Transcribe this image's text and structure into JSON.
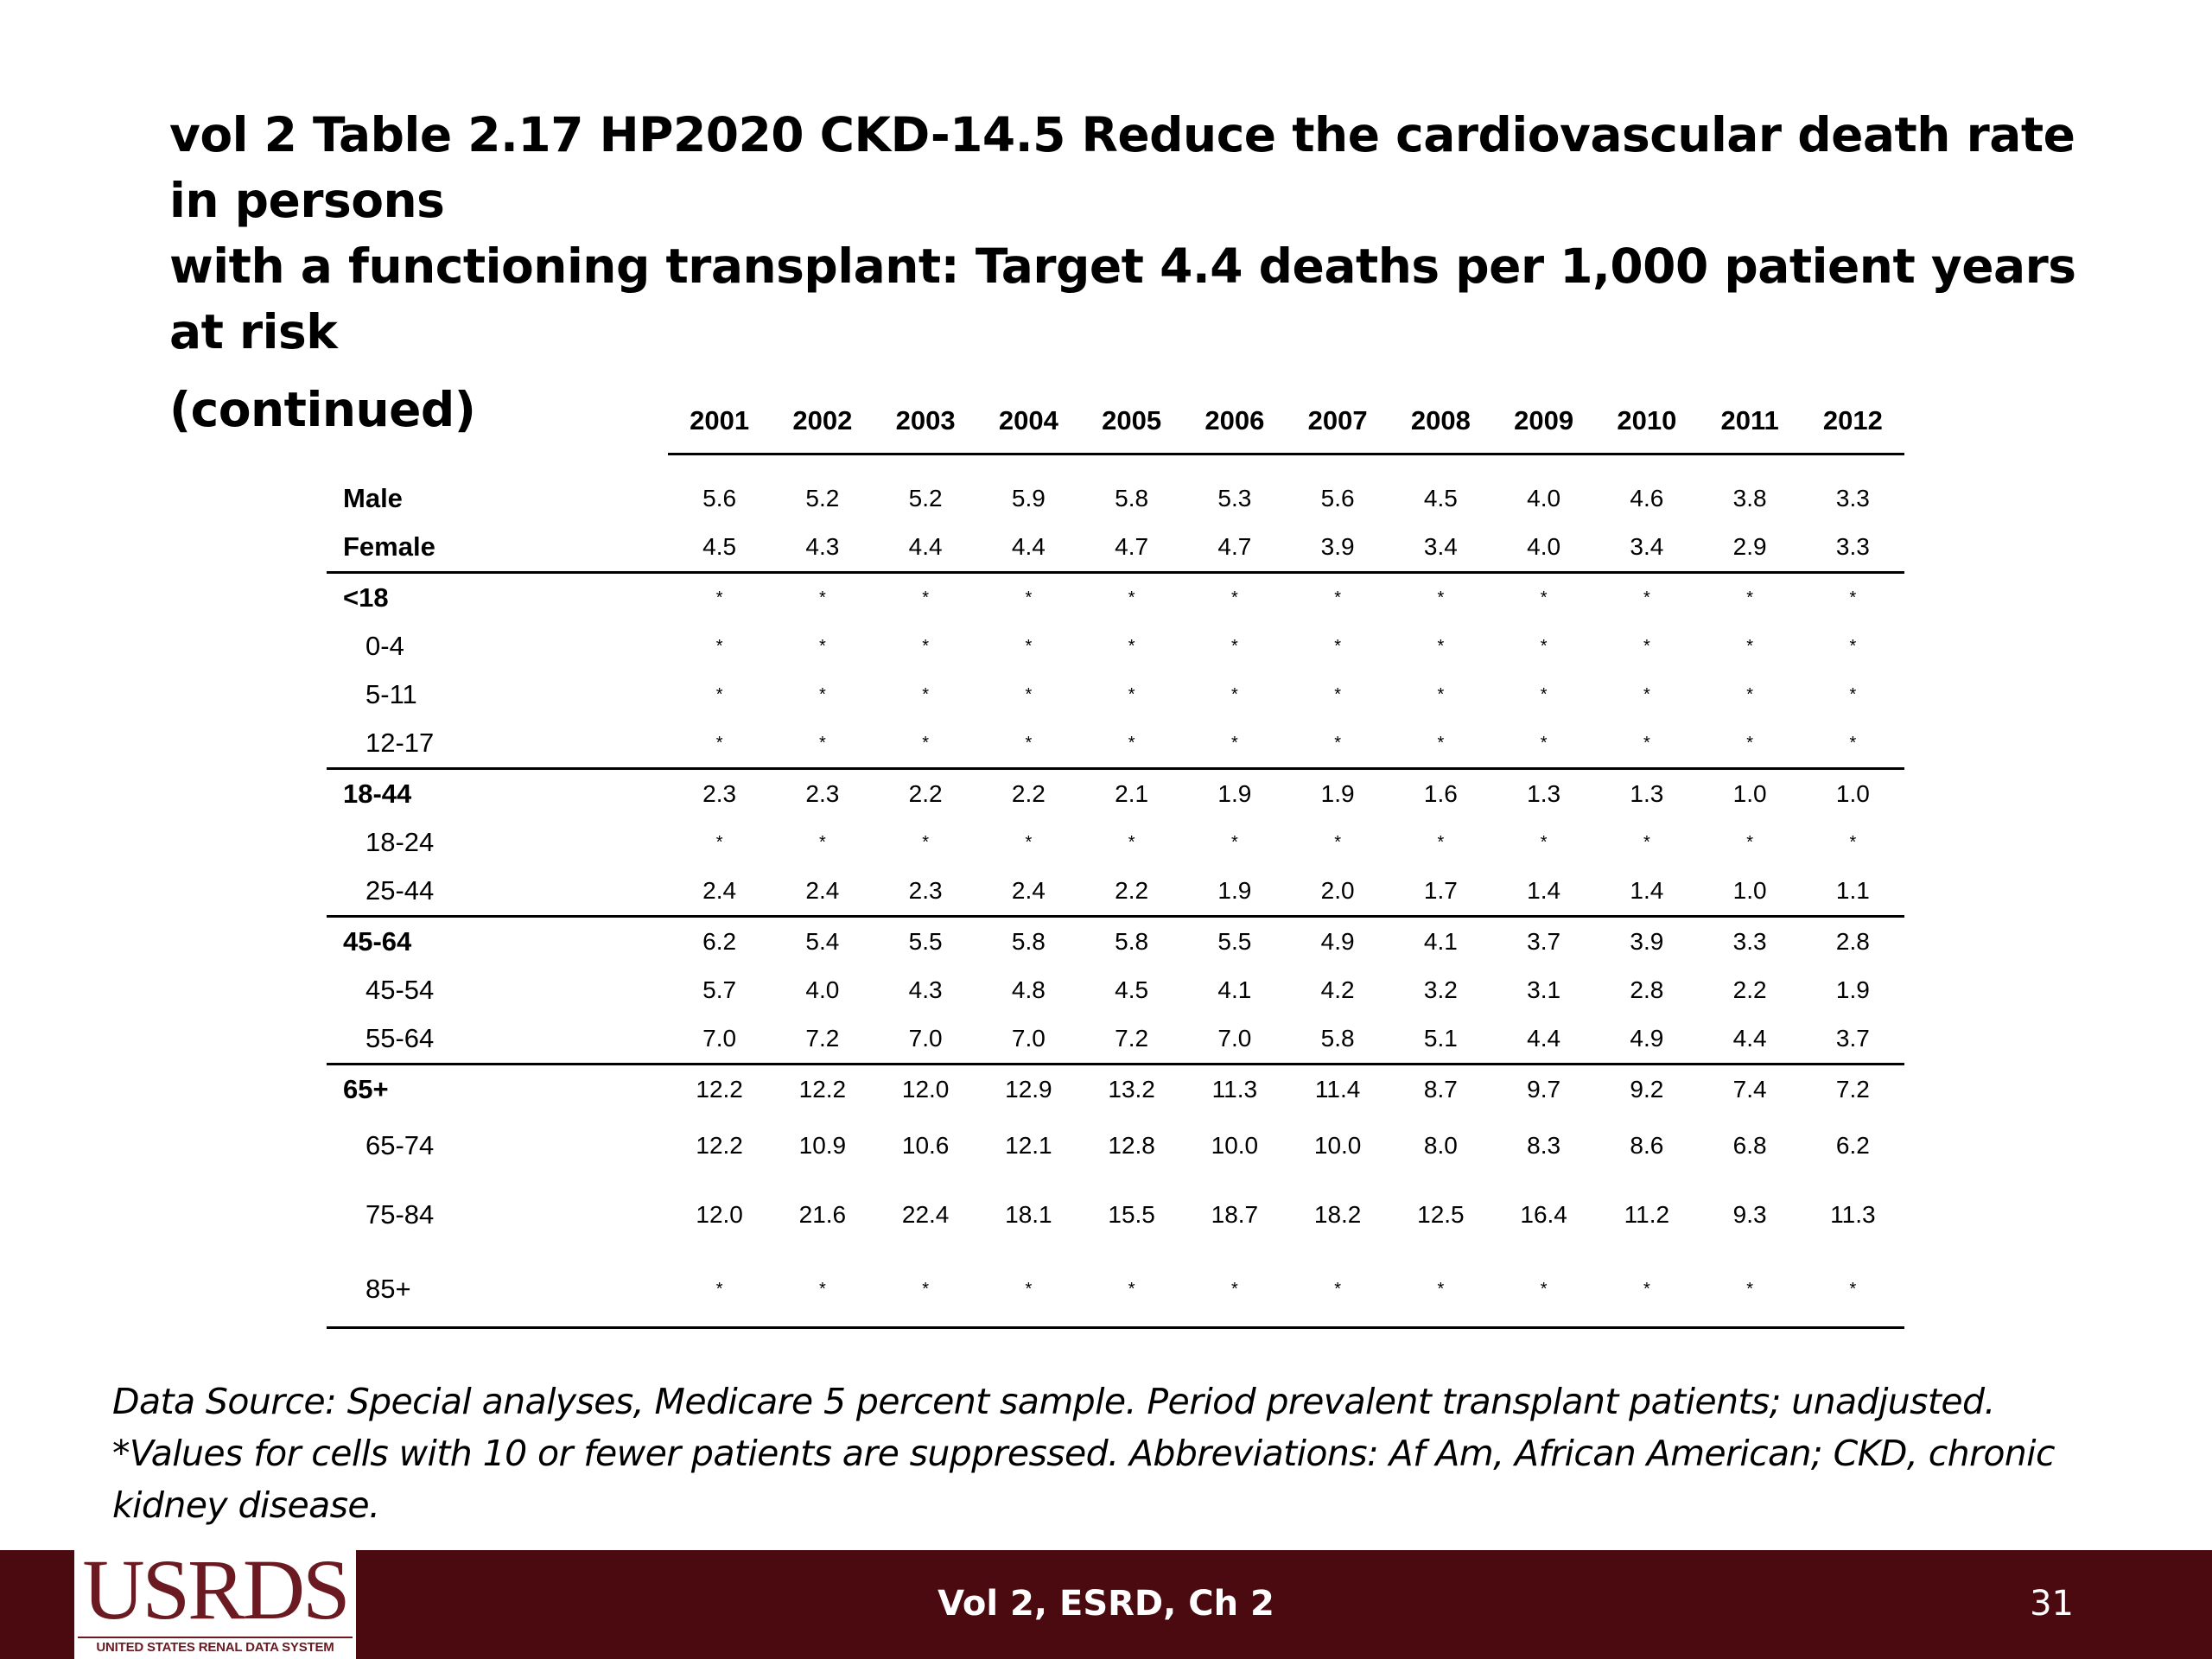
{
  "title": {
    "line1": "vol 2 Table 2.17  HP2020 CKD-14.5 Reduce the cardiovascular death rate in persons",
    "line2": "with a functioning transplant: Target 4.4 deaths per 1,000 patient years at risk",
    "line3": "(continued)"
  },
  "table": {
    "years": [
      "2001",
      "2002",
      "2003",
      "2004",
      "2005",
      "2006",
      "2007",
      "2008",
      "2009",
      "2010",
      "2011",
      "2012"
    ],
    "rows": [
      {
        "label": "Male",
        "bold": true,
        "indent": false,
        "values": [
          "5.6",
          "5.2",
          "5.2",
          "5.9",
          "5.8",
          "5.3",
          "5.6",
          "4.5",
          "4.0",
          "4.6",
          "3.8",
          "3.3"
        ]
      },
      {
        "label": "Female",
        "bold": true,
        "indent": false,
        "values": [
          "4.5",
          "4.3",
          "4.4",
          "4.4",
          "4.7",
          "4.7",
          "3.9",
          "3.4",
          "4.0",
          "3.4",
          "2.9",
          "3.3"
        ]
      },
      {
        "label": "<18",
        "bold": true,
        "indent": false,
        "values": [
          "*",
          "*",
          "*",
          "*",
          "*",
          "*",
          "*",
          "*",
          "*",
          "*",
          "*",
          "*"
        ]
      },
      {
        "label": "0-4",
        "bold": false,
        "indent": true,
        "values": [
          "*",
          "*",
          "*",
          "*",
          "*",
          "*",
          "*",
          "*",
          "*",
          "*",
          "*",
          "*"
        ]
      },
      {
        "label": "5-11",
        "bold": false,
        "indent": true,
        "values": [
          "*",
          "*",
          "*",
          "*",
          "*",
          "*",
          "*",
          "*",
          "*",
          "*",
          "*",
          "*"
        ]
      },
      {
        "label": "12-17",
        "bold": false,
        "indent": true,
        "values": [
          "*",
          "*",
          "*",
          "*",
          "*",
          "*",
          "*",
          "*",
          "*",
          "*",
          "*",
          "*"
        ]
      },
      {
        "label": "18-44",
        "bold": true,
        "indent": false,
        "values": [
          "2.3",
          "2.3",
          "2.2",
          "2.2",
          "2.1",
          "1.9",
          "1.9",
          "1.6",
          "1.3",
          "1.3",
          "1.0",
          "1.0"
        ]
      },
      {
        "label": "18-24",
        "bold": false,
        "indent": true,
        "values": [
          "*",
          "*",
          "*",
          "*",
          "*",
          "*",
          "*",
          "*",
          "*",
          "*",
          "*",
          "*"
        ]
      },
      {
        "label": "25-44",
        "bold": false,
        "indent": true,
        "values": [
          "2.4",
          "2.4",
          "2.3",
          "2.4",
          "2.2",
          "1.9",
          "2.0",
          "1.7",
          "1.4",
          "1.4",
          "1.0",
          "1.1"
        ]
      },
      {
        "label": "45-64",
        "bold": true,
        "indent": false,
        "values": [
          "6.2",
          "5.4",
          "5.5",
          "5.8",
          "5.8",
          "5.5",
          "4.9",
          "4.1",
          "3.7",
          "3.9",
          "3.3",
          "2.8"
        ]
      },
      {
        "label": "45-54",
        "bold": false,
        "indent": true,
        "values": [
          "5.7",
          "4.0",
          "4.3",
          "4.8",
          "4.5",
          "4.1",
          "4.2",
          "3.2",
          "3.1",
          "2.8",
          "2.2",
          "1.9"
        ]
      },
      {
        "label": "55-64",
        "bold": false,
        "indent": true,
        "values": [
          "7.0",
          "7.2",
          "7.0",
          "7.0",
          "7.2",
          "7.0",
          "5.8",
          "5.1",
          "4.4",
          "4.9",
          "4.4",
          "3.7"
        ]
      },
      {
        "label": "65+",
        "bold": true,
        "indent": false,
        "values": [
          "12.2",
          "12.2",
          "12.0",
          "12.9",
          "13.2",
          "11.3",
          "11.4",
          "8.7",
          "9.7",
          "9.2",
          "7.4",
          "7.2"
        ]
      },
      {
        "label": "65-74",
        "bold": false,
        "indent": true,
        "values": [
          "12.2",
          "10.9",
          "10.6",
          "12.1",
          "12.8",
          "10.0",
          "10.0",
          "8.0",
          "8.3",
          "8.6",
          "6.8",
          "6.2"
        ]
      },
      {
        "label": "75-84",
        "bold": false,
        "indent": true,
        "values": [
          "12.0",
          "21.6",
          "22.4",
          "18.1",
          "15.5",
          "18.7",
          "18.2",
          "12.5",
          "16.4",
          "11.2",
          "9.3",
          "11.3"
        ]
      },
      {
        "label": "85+",
        "bold": false,
        "indent": true,
        "values": [
          "*",
          "*",
          "*",
          "*",
          "*",
          "*",
          "*",
          "*",
          "*",
          "*",
          "*",
          "*"
        ]
      }
    ]
  },
  "source": {
    "line1": "Data Source: Special analyses, Medicare 5 percent sample. Period prevalent transplant patients; unadjusted.",
    "line2": "*Values for cells with 10 or fewer patients are suppressed. Abbreviations: Af Am, African American; CKD, chronic",
    "line3": "kidney disease."
  },
  "footer": {
    "logo_text": "USRDS",
    "logo_subtitle": "UNITED STATES RENAL DATA SYSTEM",
    "center_text": "Vol 2, ESRD, Ch 2",
    "page_number": "31",
    "bar_color": "#4a0a0f",
    "logo_color": "#6b1a22"
  }
}
